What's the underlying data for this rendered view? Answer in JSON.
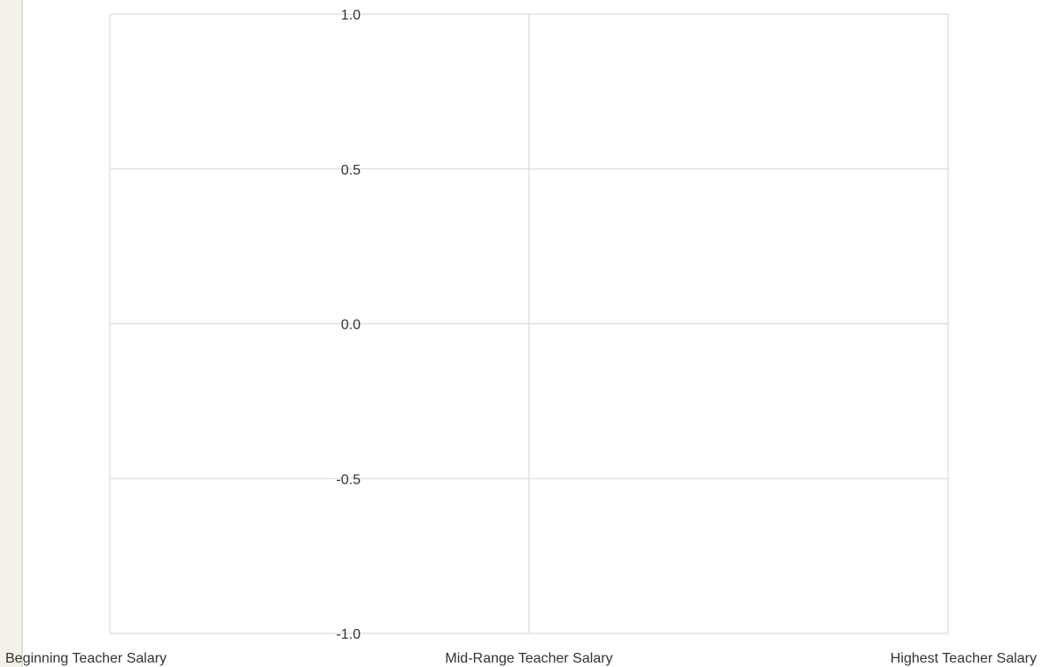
{
  "chart_data": {
    "type": "line",
    "title": "",
    "xlabel": "",
    "ylabel": "",
    "categories": [
      "Beginning Teacher Salary",
      "Mid-Range Teacher Salary",
      "Highest Teacher Salary"
    ],
    "series": [],
    "ylim": [
      -1.0,
      1.0
    ],
    "yticks": [
      "1.0",
      "0.5",
      "0.0",
      "-0.5",
      "-1.0"
    ],
    "ytick_values": [
      1.0,
      0.5,
      0.0,
      -0.5,
      -1.0
    ],
    "grid": true,
    "colors": {
      "grid": "#d6d6d6",
      "text": "#333333",
      "side_strip": "#f4f1ea"
    }
  }
}
